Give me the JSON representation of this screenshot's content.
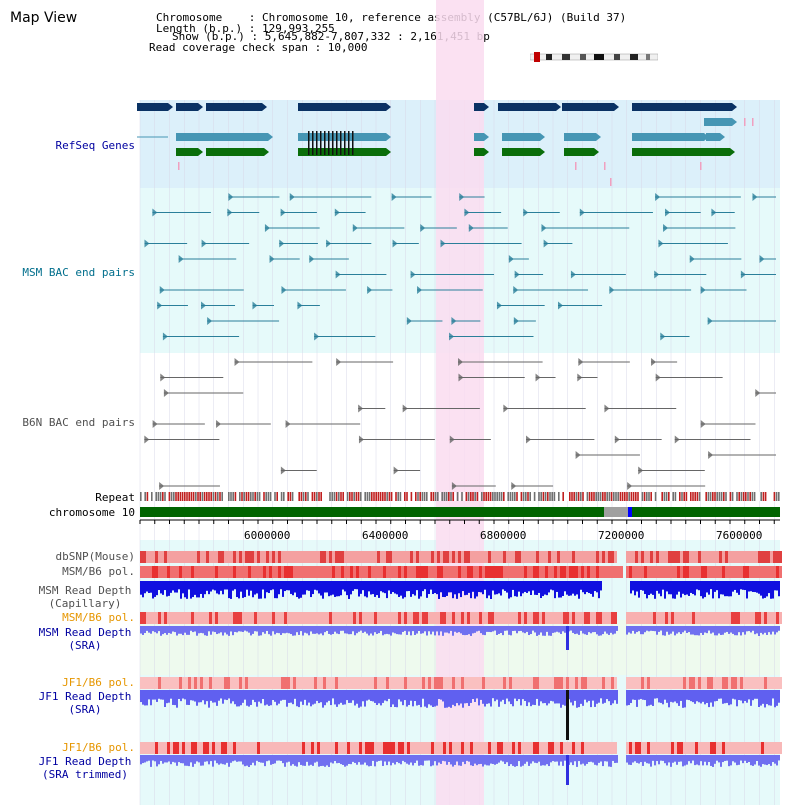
{
  "header": {
    "title": "Map View",
    "chromosome_line": "Chromosome    : Chromosome 10, reference assembly (C57BL/6J) (Build 37)",
    "length_line": "Length (b.p.) : 129,993,255",
    "show_line": "Show (b.p.) : 5,645,882-7,807,332 : 2,161,451 bp",
    "coverage_line": "Read coverage check span : 10,000"
  },
  "tracks": {
    "refseq": "RefSeq Genes",
    "msm_bac": "MSM BAC end pairs",
    "b6n_bac": "B6N BAC end pairs",
    "repeat": "Repeat",
    "chromosome": "chromosome 10",
    "dbsnp": "dbSNP(Mouse)",
    "msm_b6_pol_1": "MSM/B6 pol.",
    "msm_read_depth_cap": "MSM Read Depth\n(Capillary)",
    "msm_b6_pol_2": "MSM/B6 pol.",
    "msm_read_depth_sra": "MSM Read Depth\n(SRA)",
    "jf1_b6_pol_1": "JF1/B6 pol.",
    "jf1_read_depth_sra": "JF1 Read Depth\n(SRA)",
    "jf1_b6_pol_2": "JF1/B6 pol.",
    "jf1_read_depth_trim": "JF1 Read Depth\n(SRA trimmed)"
  },
  "axis": {
    "ticks": [
      "6000000",
      "6400000",
      "6800000",
      "7200000",
      "7600000"
    ]
  },
  "colors": {
    "refseq_bg": "#dcf0fa",
    "bac_bg": "#e6fafa",
    "highlight": "#fadcf0",
    "gene_dark": "#0a3264",
    "gene_mid": "#4696b4",
    "gene_green": "#0a6e0a",
    "chromosome_green": "#006400",
    "snp_red": "#e84040",
    "depth_blue": "#2828e6",
    "orange_label": "#e69600",
    "blue_label": "#0000a0",
    "teal_label": "#006e8c"
  }
}
